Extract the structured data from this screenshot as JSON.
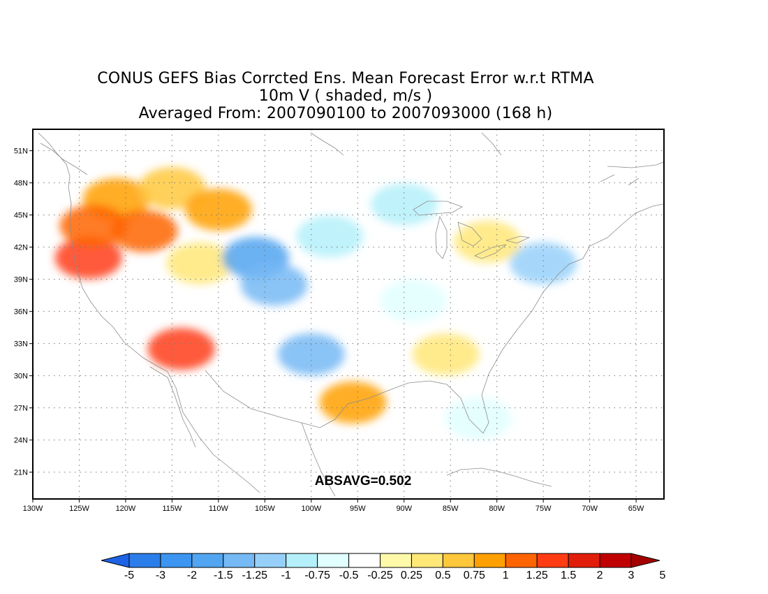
{
  "title": {
    "line1": "CONUS GEFS Bias Corrcted Ens. Mean Forecast Error w.r.t RTMA",
    "line2": "10m V ( shaded, m/s )",
    "line3": "Averaged From: 2007090100 to 2007093000 (168 h)"
  },
  "annotation": "ABSAVG=0.502",
  "map": {
    "projection": "lat-lon",
    "lon_range": [
      -130,
      -62
    ],
    "lat_range": [
      18.5,
      53
    ],
    "grid": "dotted",
    "lat_ticks": [
      {
        "value": 51,
        "label": "51N"
      },
      {
        "value": 48,
        "label": "48N"
      },
      {
        "value": 45,
        "label": "45N"
      },
      {
        "value": 42,
        "label": "42N"
      },
      {
        "value": 39,
        "label": "39N"
      },
      {
        "value": 36,
        "label": "36N"
      },
      {
        "value": 33,
        "label": "33N"
      },
      {
        "value": 30,
        "label": "30N"
      },
      {
        "value": 27,
        "label": "27N"
      },
      {
        "value": 24,
        "label": "24N"
      },
      {
        "value": 21,
        "label": "21N"
      }
    ],
    "lon_ticks": [
      {
        "value": -130,
        "label": "130W"
      },
      {
        "value": -125,
        "label": "125W"
      },
      {
        "value": -120,
        "label": "120W"
      },
      {
        "value": -115,
        "label": "115W"
      },
      {
        "value": -110,
        "label": "110W"
      },
      {
        "value": -105,
        "label": "105W"
      },
      {
        "value": -100,
        "label": "100W"
      },
      {
        "value": -95,
        "label": "95W"
      },
      {
        "value": -90,
        "label": "90W"
      },
      {
        "value": -85,
        "label": "85W"
      },
      {
        "value": -80,
        "label": "80W"
      },
      {
        "value": -75,
        "label": "75W"
      },
      {
        "value": -70,
        "label": "70W"
      },
      {
        "value": -65,
        "label": "65W"
      }
    ]
  },
  "colorbar": {
    "colors": [
      "#1e63e6",
      "#2b7de9",
      "#3c95f0",
      "#52a5f0",
      "#75b9f5",
      "#96d0fa",
      "#b4f0fa",
      "#e1ffff",
      "#ffffff",
      "#fffaaa",
      "#ffe878",
      "#ffc83c",
      "#ffa000",
      "#ff6400",
      "#ff3c14",
      "#e11e0a",
      "#c00000",
      "#a50000"
    ],
    "labels": [
      "-5",
      "-3",
      "-2",
      "-1.5",
      "-1.25",
      "-1",
      "-0.75",
      "-0.5",
      "-0.25",
      "0.25",
      "0.5",
      "0.75",
      "1",
      "1.25",
      "1.5",
      "2",
      "3",
      "5"
    ]
  },
  "field_regions": [
    {
      "lon": -121,
      "lat": 46.5,
      "value": 1.0
    },
    {
      "lon": -115,
      "lat": 47.5,
      "value": 0.75
    },
    {
      "lon": -118,
      "lat": 43.5,
      "value": 1.25
    },
    {
      "lon": -110,
      "lat": 45.5,
      "value": 1.0
    },
    {
      "lon": -124,
      "lat": 41,
      "value": 1.5
    },
    {
      "lon": -123.5,
      "lat": 44,
      "value": 1.25
    },
    {
      "lon": -112,
      "lat": 40.5,
      "value": 0.5
    },
    {
      "lon": -106,
      "lat": 41,
      "value": -1.5
    },
    {
      "lon": -104,
      "lat": 38.5,
      "value": -1.25
    },
    {
      "lon": -98,
      "lat": 43,
      "value": -0.75
    },
    {
      "lon": -100,
      "lat": 32,
      "value": -1.25
    },
    {
      "lon": -90,
      "lat": 46,
      "value": -0.75
    },
    {
      "lon": -89,
      "lat": 37,
      "value": -0.5
    },
    {
      "lon": -75,
      "lat": 40.5,
      "value": -1.0
    },
    {
      "lon": -95.5,
      "lat": 27.5,
      "value": 1.0
    },
    {
      "lon": -114,
      "lat": 32.5,
      "value": 1.5
    },
    {
      "lon": -81,
      "lat": 42.5,
      "value": 0.5
    },
    {
      "lon": -85.5,
      "lat": 32,
      "value": 0.5
    },
    {
      "lon": -82,
      "lat": 26,
      "value": -0.5
    }
  ]
}
